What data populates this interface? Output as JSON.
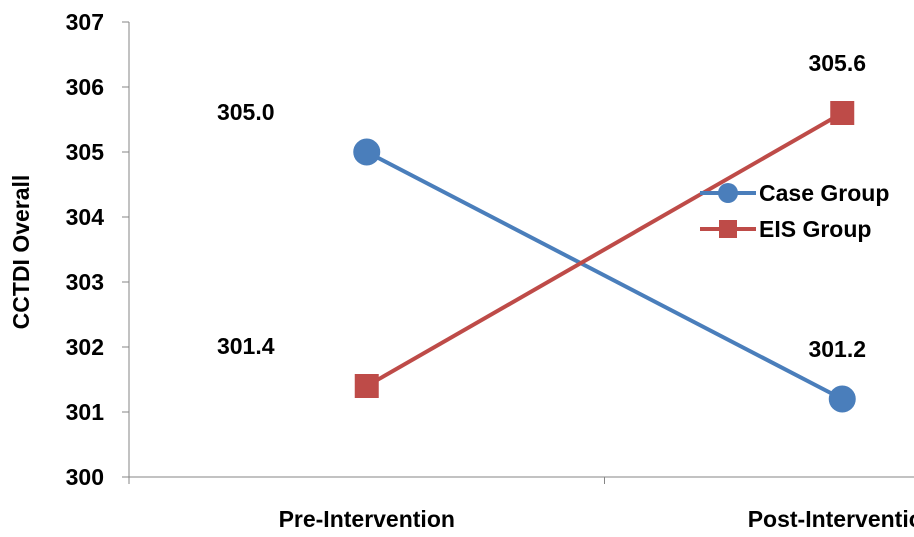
{
  "chart_data": {
    "type": "line",
    "categories": [
      "Pre-Intervention",
      "Post-Intervention"
    ],
    "series": [
      {
        "name": "Case Group",
        "values": [
          305.0,
          301.2
        ],
        "color": "#4A7EBB",
        "marker": "circle",
        "labels": [
          "305.0",
          "301.2"
        ]
      },
      {
        "name": "EIS Group",
        "values": [
          301.4,
          305.6
        ],
        "color": "#BE4B48",
        "marker": "square",
        "labels": [
          "301.4",
          "305.6"
        ]
      }
    ],
    "ylabel": "CCTDI Overall",
    "xlabel": "",
    "ylim": [
      300,
      307
    ],
    "yticks": [
      300,
      301,
      302,
      303,
      304,
      305,
      306,
      307
    ],
    "legend": "right",
    "grid": false
  }
}
